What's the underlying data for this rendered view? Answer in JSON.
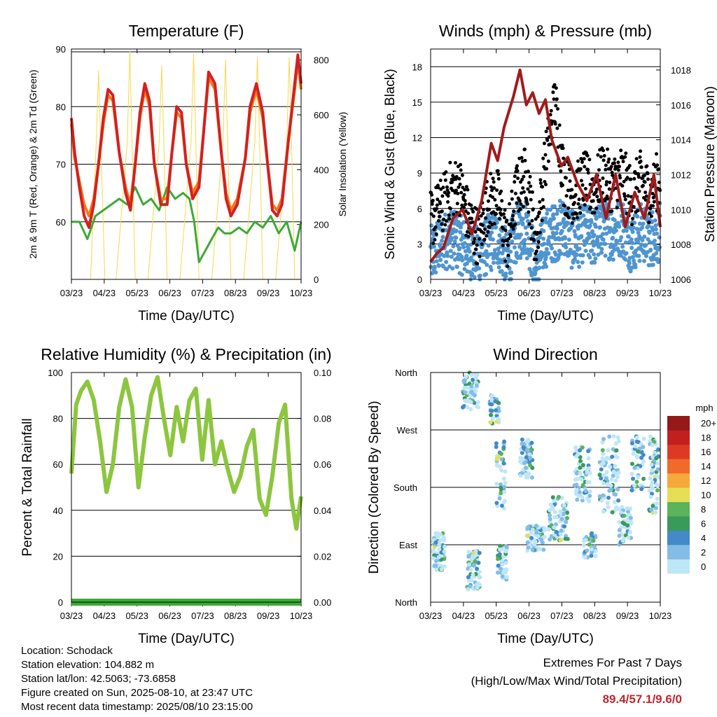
{
  "x_ticks": [
    "03/23",
    "04/23",
    "05/23",
    "06/23",
    "07/23",
    "08/23",
    "09/23",
    "10/23"
  ],
  "xlabel": "Time (Day/UTC)",
  "chart_data": [
    {
      "type": "line",
      "title": "Temperature (F)",
      "xlabel": "Time (Day/UTC)",
      "ylabel_left": "2m & 9m T (Red, Orange) & 2m Td (Green)",
      "ylabel_right": "Solar Insolation (Yellow)",
      "ylim": [
        50,
        90
      ],
      "y_ticks": [
        60,
        70,
        80,
        90
      ],
      "y2lim": [
        0,
        840
      ],
      "y2_ticks": [
        0,
        200,
        400,
        600,
        800
      ],
      "x_ticks": [
        "03/23",
        "04/23",
        "05/23",
        "06/23",
        "07/23",
        "08/23",
        "09/23",
        "10/23"
      ],
      "grid": true,
      "series": [
        {
          "name": "2m T",
          "color": "#d42020",
          "axis": "left",
          "x": [
            0.0,
            0.1,
            0.25,
            0.4,
            0.55,
            0.7,
            0.85,
            1.0,
            1.15,
            1.3,
            1.5,
            1.7,
            1.85,
            2.0,
            2.15,
            2.3,
            2.45,
            2.6,
            2.8,
            3.0,
            3.15,
            3.3,
            3.45,
            3.6,
            3.8,
            4.0,
            4.15,
            4.3,
            4.5,
            4.7,
            4.85,
            5.0,
            5.2,
            5.45,
            5.6,
            5.8,
            6.0,
            6.15,
            6.3,
            6.45,
            6.6,
            6.8,
            7.0,
            7.1,
            7.2
          ],
          "values": [
            78,
            72,
            66,
            61,
            59,
            63,
            70,
            78,
            83,
            82,
            72,
            65,
            62,
            70,
            79,
            84,
            81,
            70,
            63,
            63,
            72,
            80,
            79,
            70,
            64,
            66,
            76,
            86,
            84,
            72,
            64,
            61,
            63,
            71,
            80,
            84,
            79,
            70,
            62,
            61,
            63,
            74,
            84,
            89,
            84
          ]
        },
        {
          "name": "9m T",
          "color": "#f27a1a",
          "axis": "left",
          "x": [
            0.0,
            0.1,
            0.25,
            0.4,
            0.55,
            0.7,
            0.85,
            1.0,
            1.15,
            1.3,
            1.5,
            1.7,
            1.85,
            2.0,
            2.15,
            2.3,
            2.45,
            2.6,
            2.8,
            3.0,
            3.15,
            3.3,
            3.45,
            3.6,
            3.8,
            4.0,
            4.15,
            4.3,
            4.5,
            4.7,
            4.85,
            5.0,
            5.2,
            5.45,
            5.6,
            5.8,
            6.0,
            6.15,
            6.3,
            6.45,
            6.6,
            6.8,
            7.0,
            7.1,
            7.2
          ],
          "values": [
            77,
            71,
            67,
            63,
            61,
            64,
            70,
            77,
            82,
            81,
            72,
            66,
            63,
            70,
            78,
            83,
            80,
            70,
            64,
            64,
            72,
            79,
            78,
            70,
            65,
            67,
            76,
            85,
            83,
            72,
            65,
            62,
            64,
            71,
            79,
            83,
            78,
            70,
            63,
            62,
            64,
            74,
            83,
            88,
            83
          ]
        },
        {
          "name": "2m Td",
          "color": "#3aaa35",
          "axis": "left",
          "x": [
            0.0,
            0.25,
            0.5,
            0.75,
            1.0,
            1.25,
            1.5,
            1.75,
            2.0,
            2.25,
            2.5,
            2.75,
            3.0,
            3.25,
            3.5,
            3.7,
            3.85,
            4.0,
            4.2,
            4.4,
            4.6,
            4.8,
            5.0,
            5.25,
            5.5,
            5.75,
            6.0,
            6.25,
            6.5,
            6.75,
            7.0,
            7.2
          ],
          "values": [
            60,
            60,
            57,
            61,
            62,
            63,
            64,
            63,
            66,
            63,
            64,
            62,
            66,
            64,
            65,
            64,
            60,
            53,
            55,
            57,
            59,
            58,
            58,
            59,
            58,
            60,
            59,
            61,
            58,
            60,
            55,
            60
          ]
        },
        {
          "name": "Solar Insolation",
          "color": "#f6d84a",
          "axis": "right",
          "x": [
            0.0,
            0.3,
            0.6,
            0.78,
            0.85,
            0.92,
            1.05,
            1.4,
            1.75,
            1.83,
            1.9,
            2.0,
            2.4,
            2.75,
            2.83,
            2.9,
            3.0,
            3.4,
            3.75,
            3.83,
            3.9,
            4.0,
            4.4,
            4.75,
            4.83,
            4.9,
            5.0,
            5.4,
            5.75,
            5.83,
            5.9,
            6.0,
            6.4,
            6.75,
            6.83,
            6.9,
            7.0,
            7.2
          ],
          "values": [
            0,
            0,
            0,
            500,
            760,
            500,
            0,
            0,
            500,
            830,
            500,
            0,
            0,
            500,
            780,
            500,
            0,
            0,
            500,
            820,
            500,
            0,
            0,
            500,
            800,
            500,
            0,
            0,
            500,
            810,
            500,
            0,
            0,
            500,
            810,
            500,
            0,
            0
          ]
        }
      ]
    },
    {
      "type": "line",
      "title": "Winds (mph) & Pressure (mb)",
      "xlabel": "Time (Day/UTC)",
      "ylabel_left": "Sonic Wind & Gust (Blue, Black)",
      "ylabel_right": "Station Pressure (Maroon)",
      "ylim": [
        0,
        19.5
      ],
      "y_ticks": [
        0,
        3,
        6,
        9,
        12,
        15,
        18
      ],
      "y2lim": [
        1006,
        1019.2
      ],
      "y2_ticks": [
        1006,
        1008,
        1010,
        1012,
        1014,
        1016,
        1018
      ],
      "x_ticks": [
        "03/23",
        "04/23",
        "05/23",
        "06/23",
        "07/23",
        "08/23",
        "09/23",
        "10/23"
      ],
      "grid": true,
      "series": [
        {
          "name": "Station Pressure",
          "color": "#a01c1c",
          "axis": "right",
          "x": [
            0.0,
            0.2,
            0.4,
            0.7,
            1.0,
            1.3,
            1.6,
            1.9,
            2.1,
            2.3,
            2.6,
            2.8,
            3.0,
            3.2,
            3.4,
            3.6,
            3.8,
            4.0,
            4.1,
            4.3,
            4.6,
            4.9,
            5.2,
            5.5,
            5.8,
            6.1,
            6.4,
            6.7,
            7.0,
            7.2
          ],
          "values": [
            1007.0,
            1007.5,
            1007.8,
            1009.5,
            1010.0,
            1008.6,
            1010.5,
            1013.8,
            1012.8,
            1014.7,
            1016.5,
            1018.0,
            1016.0,
            1016.7,
            1015.5,
            1016.3,
            1014.0,
            1013.0,
            1012.5,
            1013.0,
            1011.5,
            1010.5,
            1012.0,
            1009.5,
            1012.0,
            1009.0,
            1011.0,
            1009.5,
            1012.0,
            1009.0
          ]
        },
        {
          "name": "Sonic Wind",
          "color": "#4f95d0",
          "axis": "left",
          "x": [
            0.0,
            0.3,
            0.6,
            0.9,
            1.2,
            1.5,
            1.8,
            2.1,
            2.4,
            2.7,
            3.0,
            3.3,
            3.6,
            3.9,
            4.2,
            4.5,
            4.8,
            5.1,
            5.4,
            5.7,
            6.0,
            6.3,
            6.6,
            6.9,
            7.2
          ],
          "values": [
            2.0,
            3.0,
            3.5,
            3.0,
            2.5,
            2.0,
            3.0,
            3.5,
            1.5,
            4.0,
            4.5,
            1.0,
            3.5,
            4.0,
            4.5,
            3.0,
            4.0,
            3.5,
            4.5,
            4.0,
            4.5,
            3.0,
            4.0,
            3.5,
            4.0
          ]
        },
        {
          "name": "Gust",
          "color": "#000000",
          "axis": "left",
          "x": [
            0.0,
            0.3,
            0.6,
            0.9,
            1.2,
            1.5,
            1.8,
            2.1,
            2.4,
            2.7,
            3.0,
            3.3,
            3.6,
            3.9,
            4.2,
            4.5,
            4.8,
            5.1,
            5.4,
            5.7,
            6.0,
            6.3,
            6.6,
            6.9,
            7.2
          ],
          "values": [
            5.0,
            6.0,
            7.5,
            8.0,
            5.0,
            3.5,
            6.5,
            7.0,
            3.0,
            7.5,
            9.0,
            3.0,
            10.0,
            15.0,
            8.0,
            7.0,
            8.5,
            7.5,
            9.0,
            8.0,
            9.0,
            7.0,
            8.5,
            7.0,
            9.0
          ]
        }
      ]
    },
    {
      "type": "line",
      "title": "Relative Humidity (%) & Precipitation (in)",
      "xlabel": "Time (Day/UTC)",
      "ylabel": "Percent & Total Rainfall",
      "ylim": [
        0,
        100
      ],
      "y_ticks": [
        0,
        20,
        40,
        60,
        80,
        100
      ],
      "y2lim": [
        0,
        0.1
      ],
      "y2_ticks": [
        "0.00",
        "0.02",
        "0.04",
        "0.06",
        "0.08",
        "0.10"
      ],
      "x_ticks": [
        "03/23",
        "04/23",
        "05/23",
        "06/23",
        "07/23",
        "08/23",
        "09/23",
        "10/23"
      ],
      "grid": true,
      "series": [
        {
          "name": "Relative Humidity",
          "color": "#8cc63f",
          "axis": "left",
          "x": [
            0.0,
            0.15,
            0.3,
            0.5,
            0.7,
            0.9,
            1.1,
            1.3,
            1.5,
            1.7,
            1.9,
            2.1,
            2.3,
            2.5,
            2.7,
            2.9,
            3.1,
            3.3,
            3.5,
            3.7,
            3.9,
            4.1,
            4.3,
            4.5,
            4.7,
            4.9,
            5.1,
            5.3,
            5.5,
            5.7,
            5.9,
            6.1,
            6.3,
            6.5,
            6.7,
            6.9,
            7.05,
            7.2
          ],
          "values": [
            56,
            86,
            92,
            96,
            88,
            70,
            48,
            60,
            85,
            97,
            85,
            50,
            72,
            90,
            98,
            80,
            64,
            85,
            70,
            88,
            93,
            62,
            88,
            60,
            70,
            58,
            48,
            55,
            68,
            75,
            45,
            38,
            55,
            78,
            86,
            45,
            32,
            46
          ]
        },
        {
          "name": "Total Rainfall",
          "color": "#3aaa35",
          "axis": "right",
          "x": [
            0.0,
            7.2
          ],
          "values": [
            0.0,
            0.0
          ]
        }
      ]
    },
    {
      "type": "scatter",
      "title": "Wind Direction",
      "xlabel": "Time (Day/UTC)",
      "ylabel": "Direction (Colored By Speed)",
      "y_ticks": [
        "North",
        "East",
        "South",
        "West",
        "North"
      ],
      "ylim": [
        0,
        360
      ],
      "x_ticks": [
        "03/23",
        "04/23",
        "05/23",
        "06/23",
        "07/23",
        "08/23",
        "09/23",
        "10/23"
      ],
      "grid": true,
      "colorbar": {
        "title": "mph",
        "labels": [
          "0",
          "2",
          "4",
          "6",
          "8",
          "10",
          "12",
          "14",
          "16",
          "18",
          "20+"
        ],
        "colors": [
          "#bfe6f7",
          "#83bde6",
          "#4489c8",
          "#3a9a5a",
          "#5bb35a",
          "#e4df55",
          "#f7a83a",
          "#f06a2a",
          "#dd3a24",
          "#c1201e",
          "#961818"
        ]
      },
      "clusters": [
        {
          "x": 0.25,
          "dir": 80,
          "spread_x": 0.2,
          "spread_y": 30,
          "n": 70
        },
        {
          "x": 1.25,
          "dir": 330,
          "spread_x": 0.25,
          "spread_y": 30,
          "n": 60
        },
        {
          "x": 1.35,
          "dir": 50,
          "spread_x": 0.2,
          "spread_y": 30,
          "n": 70
        },
        {
          "x": 2.0,
          "dir": 300,
          "spread_x": 0.15,
          "spread_y": 25,
          "n": 35
        },
        {
          "x": 2.2,
          "dir": 200,
          "spread_x": 0.15,
          "spread_y": 60,
          "n": 40
        },
        {
          "x": 2.25,
          "dir": 60,
          "spread_x": 0.15,
          "spread_y": 30,
          "n": 45
        },
        {
          "x": 3.0,
          "dir": 225,
          "spread_x": 0.2,
          "spread_y": 30,
          "n": 60
        },
        {
          "x": 3.3,
          "dir": 100,
          "spread_x": 0.3,
          "spread_y": 20,
          "n": 70
        },
        {
          "x": 4.0,
          "dir": 130,
          "spread_x": 0.3,
          "spread_y": 35,
          "n": 70
        },
        {
          "x": 4.75,
          "dir": 200,
          "spread_x": 0.25,
          "spread_y": 45,
          "n": 70
        },
        {
          "x": 5.0,
          "dir": 90,
          "spread_x": 0.2,
          "spread_y": 20,
          "n": 40
        },
        {
          "x": 5.6,
          "dir": 200,
          "spread_x": 0.3,
          "spread_y": 60,
          "n": 80
        },
        {
          "x": 6.1,
          "dir": 120,
          "spread_x": 0.2,
          "spread_y": 30,
          "n": 45
        },
        {
          "x": 6.5,
          "dir": 220,
          "spread_x": 0.2,
          "spread_y": 45,
          "n": 50
        },
        {
          "x": 7.0,
          "dir": 200,
          "spread_x": 0.15,
          "spread_y": 60,
          "n": 60
        }
      ]
    }
  ],
  "info": {
    "location": "Location: Schodack",
    "elevation": "Station elevation: 104.882 m",
    "latlon": "Station lat/lon: 42.5063; -73.6858",
    "created": "Figure created on Sun, 2025-08-10, at 23:47 UTC",
    "recent": "Most recent data timestamp: 2025/08/10 23:15:00"
  },
  "extremes": {
    "title": "Extremes For Past 7 Days",
    "subtitle": "(High/Low/Max Wind/Total Precipitation)",
    "values": "89.4/57.1/9.6/0"
  }
}
